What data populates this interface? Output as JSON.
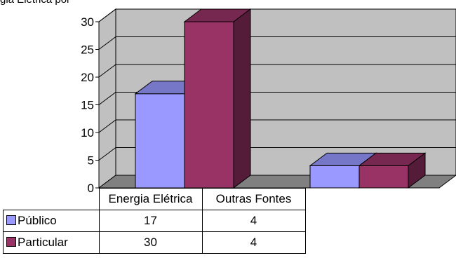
{
  "caption": "gia Elétrica por",
  "chart_data": {
    "type": "bar",
    "categories": [
      "Energia Elétrica",
      "Outras Fontes"
    ],
    "series": [
      {
        "name": "Público",
        "values": [
          17,
          4
        ],
        "color": "#9999ff"
      },
      {
        "name": "Particular",
        "values": [
          30,
          4
        ],
        "color": "#993366"
      }
    ],
    "ylim": [
      0,
      30
    ],
    "yticks": [
      "0",
      "5",
      "10",
      "15",
      "20",
      "25",
      "30"
    ],
    "grid": true,
    "legend": "data-table",
    "style": "3d-clustered-column",
    "wall_color": "#c0c0c0",
    "floor_color": "#808080"
  }
}
